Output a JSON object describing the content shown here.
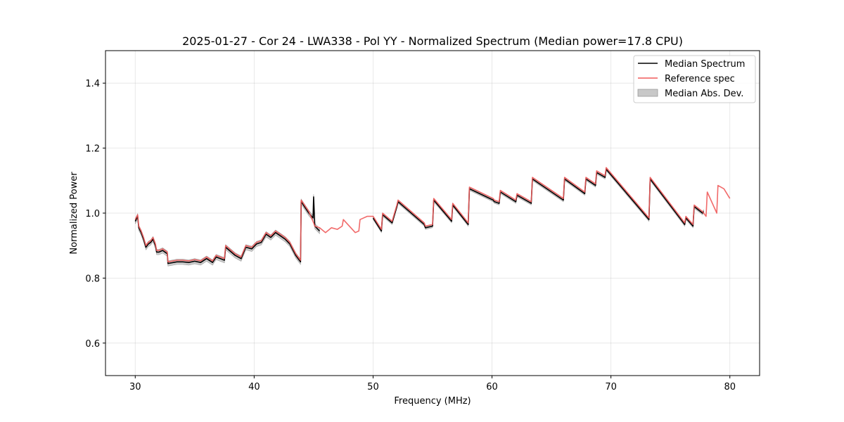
{
  "chart_data": {
    "type": "line",
    "title": "2025-01-27 - Cor 24 - LWA338 - Pol YY - Normalized Spectrum (Median power=17.8 CPU)",
    "xlabel": "Frequency (MHz)",
    "ylabel": "Normalized Power",
    "xlim": [
      27.5,
      82.5
    ],
    "ylim": [
      0.5,
      1.5
    ],
    "xticks": [
      30,
      40,
      50,
      60,
      70,
      80
    ],
    "xtick_labels": [
      "30",
      "40",
      "50",
      "60",
      "70",
      "80"
    ],
    "yticks": [
      0.6,
      0.8,
      1.0,
      1.2,
      1.4
    ],
    "ytick_labels": [
      "0.6",
      "0.8",
      "1.0",
      "1.2",
      "1.4"
    ],
    "grid": true,
    "legend_position": "top-right",
    "legend": [
      "Median Spectrum",
      "Reference spec",
      "Median Abs. Dev."
    ],
    "colors": {
      "median": "#000000",
      "reference": "#f05a5a",
      "mad_fill": "#c8c8c8"
    },
    "series": [
      {
        "name": "Median Spectrum",
        "mad": 0.008,
        "x": [
          30.0,
          30.2,
          30.3,
          30.5,
          30.7,
          30.9,
          31.1,
          31.3,
          31.5,
          31.7,
          31.8,
          32.0,
          32.3,
          32.7,
          32.75,
          33.5,
          34.0,
          34.5,
          35.0,
          35.5,
          36.0,
          36.5,
          36.8,
          37.5,
          37.6,
          38.4,
          38.9,
          39.3,
          39.8,
          40.2,
          40.6,
          41.0,
          41.4,
          41.8,
          42.2,
          42.6,
          43.0,
          43.5,
          43.9,
          43.95,
          44.6,
          44.95,
          45.0,
          45.1,
          45.5
        ],
        "values": [
          0.975,
          0.99,
          0.955,
          0.94,
          0.92,
          0.895,
          0.905,
          0.91,
          0.92,
          0.9,
          0.88,
          0.88,
          0.885,
          0.875,
          0.845,
          0.85,
          0.85,
          0.848,
          0.852,
          0.848,
          0.86,
          0.848,
          0.865,
          0.855,
          0.895,
          0.87,
          0.86,
          0.895,
          0.89,
          0.905,
          0.91,
          0.935,
          0.925,
          0.94,
          0.93,
          0.92,
          0.905,
          0.87,
          0.85,
          1.035,
          1.0,
          0.985,
          1.05,
          0.96,
          0.945
        ]
      },
      {
        "name": "Median Spectrum",
        "mad": 0.005,
        "x": [
          50.0,
          50.7,
          50.8,
          51.6,
          52.0,
          52.1,
          54.3,
          54.4,
          55.0,
          55.1,
          56.6,
          56.7,
          58.0,
          58.1,
          60.1,
          60.2,
          60.6,
          60.7,
          62.0,
          62.1,
          63.3,
          63.4,
          66.0,
          66.1,
          67.8,
          67.9,
          68.7,
          68.8,
          69.5,
          69.6,
          73.2,
          73.3,
          76.2,
          76.3,
          76.9,
          77.0,
          77.7,
          77.8
        ],
        "values": [
          0.985,
          0.945,
          0.995,
          0.97,
          1.02,
          1.035,
          0.965,
          0.955,
          0.96,
          1.04,
          0.975,
          1.025,
          0.965,
          1.075,
          1.04,
          1.035,
          1.03,
          1.065,
          1.035,
          1.055,
          1.03,
          1.105,
          1.04,
          1.105,
          1.06,
          1.105,
          1.085,
          1.125,
          1.11,
          1.135,
          0.98,
          1.105,
          0.965,
          0.985,
          0.96,
          1.02,
          1.0,
          1.005
        ]
      },
      {
        "name": "Reference spec",
        "x": [
          30.0,
          30.2,
          30.3,
          30.5,
          30.7,
          30.9,
          31.1,
          31.3,
          31.5,
          31.7,
          31.8,
          32.0,
          32.3,
          32.7,
          32.75,
          33.5,
          34.0,
          34.5,
          35.0,
          35.5,
          36.0,
          36.5,
          36.8,
          37.5,
          37.6,
          38.4,
          38.9,
          39.3,
          39.8,
          40.2,
          40.6,
          41.0,
          41.4,
          41.8,
          42.2,
          42.6,
          43.0,
          43.5,
          43.9,
          43.95,
          44.6,
          45.0,
          45.1,
          45.5,
          46.0,
          46.5,
          47.0,
          47.4,
          47.5,
          48.5,
          48.8,
          48.9,
          49.5,
          50.0,
          50.7,
          50.8,
          51.6,
          52.0,
          52.1,
          54.3,
          54.4,
          55.0,
          55.1,
          56.6,
          56.7,
          58.0,
          58.1,
          60.1,
          60.2,
          60.6,
          60.7,
          62.0,
          62.1,
          63.3,
          63.4,
          66.0,
          66.1,
          67.8,
          67.9,
          68.7,
          68.8,
          69.5,
          69.6,
          73.2,
          73.3,
          76.2,
          76.3,
          76.9,
          77.0,
          77.7,
          78.0,
          78.1,
          78.9,
          79.0,
          79.5,
          80.0
        ],
        "values": [
          0.98,
          0.995,
          0.96,
          0.945,
          0.925,
          0.9,
          0.91,
          0.915,
          0.925,
          0.905,
          0.885,
          0.885,
          0.89,
          0.88,
          0.85,
          0.855,
          0.855,
          0.853,
          0.857,
          0.853,
          0.865,
          0.853,
          0.87,
          0.86,
          0.9,
          0.875,
          0.865,
          0.9,
          0.895,
          0.91,
          0.915,
          0.94,
          0.93,
          0.945,
          0.935,
          0.925,
          0.91,
          0.875,
          0.855,
          1.04,
          1.005,
          0.97,
          0.96,
          0.955,
          0.94,
          0.955,
          0.95,
          0.96,
          0.98,
          0.94,
          0.945,
          0.98,
          0.99,
          0.99,
          0.95,
          1.0,
          0.975,
          1.025,
          1.04,
          0.97,
          0.96,
          0.965,
          1.045,
          0.98,
          1.03,
          0.97,
          1.08,
          1.045,
          1.04,
          1.035,
          1.07,
          1.04,
          1.06,
          1.035,
          1.11,
          1.045,
          1.11,
          1.065,
          1.11,
          1.09,
          1.13,
          1.115,
          1.14,
          0.985,
          1.11,
          0.97,
          0.99,
          0.965,
          1.025,
          1.005,
          0.99,
          1.065,
          1.0,
          1.085,
          1.075,
          1.045
        ]
      }
    ]
  }
}
